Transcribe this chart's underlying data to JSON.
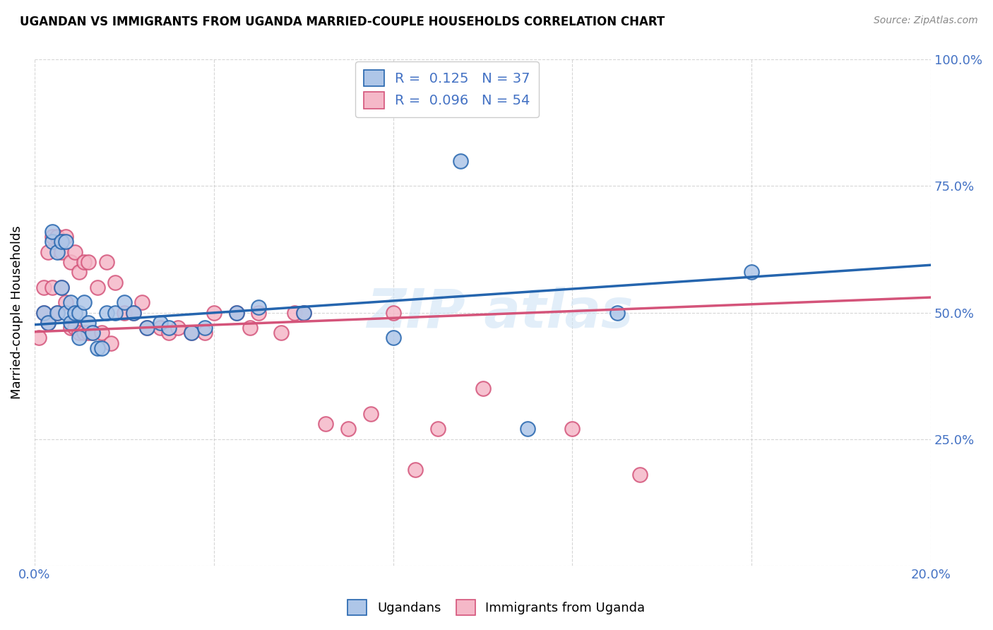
{
  "title": "UGANDAN VS IMMIGRANTS FROM UGANDA MARRIED-COUPLE HOUSEHOLDS CORRELATION CHART",
  "source": "Source: ZipAtlas.com",
  "ylabel": "Married-couple Households",
  "xmin": 0.0,
  "xmax": 0.2,
  "ymin": 0.0,
  "ymax": 1.0,
  "blue_R": 0.125,
  "blue_N": 37,
  "pink_R": 0.096,
  "pink_N": 54,
  "blue_color": "#aec6e8",
  "pink_color": "#f5b8c8",
  "blue_line_color": "#2565ae",
  "pink_line_color": "#d4547a",
  "blue_scatter_x": [
    0.002,
    0.003,
    0.004,
    0.004,
    0.005,
    0.005,
    0.006,
    0.006,
    0.007,
    0.007,
    0.008,
    0.008,
    0.009,
    0.01,
    0.01,
    0.011,
    0.012,
    0.013,
    0.014,
    0.015,
    0.016,
    0.018,
    0.02,
    0.022,
    0.025,
    0.028,
    0.03,
    0.035,
    0.038,
    0.045,
    0.05,
    0.06,
    0.08,
    0.095,
    0.11,
    0.13,
    0.16
  ],
  "blue_scatter_y": [
    0.5,
    0.48,
    0.64,
    0.66,
    0.62,
    0.5,
    0.64,
    0.55,
    0.64,
    0.5,
    0.52,
    0.48,
    0.5,
    0.5,
    0.45,
    0.52,
    0.48,
    0.46,
    0.43,
    0.43,
    0.5,
    0.5,
    0.52,
    0.5,
    0.47,
    0.48,
    0.47,
    0.46,
    0.47,
    0.5,
    0.51,
    0.5,
    0.45,
    0.8,
    0.27,
    0.5,
    0.58
  ],
  "pink_scatter_x": [
    0.001,
    0.002,
    0.002,
    0.003,
    0.003,
    0.004,
    0.004,
    0.005,
    0.005,
    0.006,
    0.006,
    0.007,
    0.007,
    0.008,
    0.008,
    0.009,
    0.009,
    0.01,
    0.01,
    0.011,
    0.011,
    0.012,
    0.012,
    0.013,
    0.014,
    0.015,
    0.016,
    0.017,
    0.018,
    0.02,
    0.022,
    0.024,
    0.025,
    0.028,
    0.03,
    0.032,
    0.035,
    0.038,
    0.04,
    0.045,
    0.048,
    0.05,
    0.055,
    0.058,
    0.06,
    0.065,
    0.07,
    0.075,
    0.08,
    0.085,
    0.09,
    0.1,
    0.12,
    0.135
  ],
  "pink_scatter_y": [
    0.45,
    0.5,
    0.55,
    0.62,
    0.48,
    0.65,
    0.55,
    0.65,
    0.5,
    0.62,
    0.55,
    0.65,
    0.52,
    0.6,
    0.47,
    0.62,
    0.47,
    0.58,
    0.46,
    0.6,
    0.46,
    0.6,
    0.46,
    0.46,
    0.55,
    0.46,
    0.6,
    0.44,
    0.56,
    0.5,
    0.5,
    0.52,
    0.47,
    0.47,
    0.46,
    0.47,
    0.46,
    0.46,
    0.5,
    0.5,
    0.47,
    0.5,
    0.46,
    0.5,
    0.5,
    0.28,
    0.27,
    0.3,
    0.5,
    0.19,
    0.27,
    0.35,
    0.27,
    0.18
  ]
}
